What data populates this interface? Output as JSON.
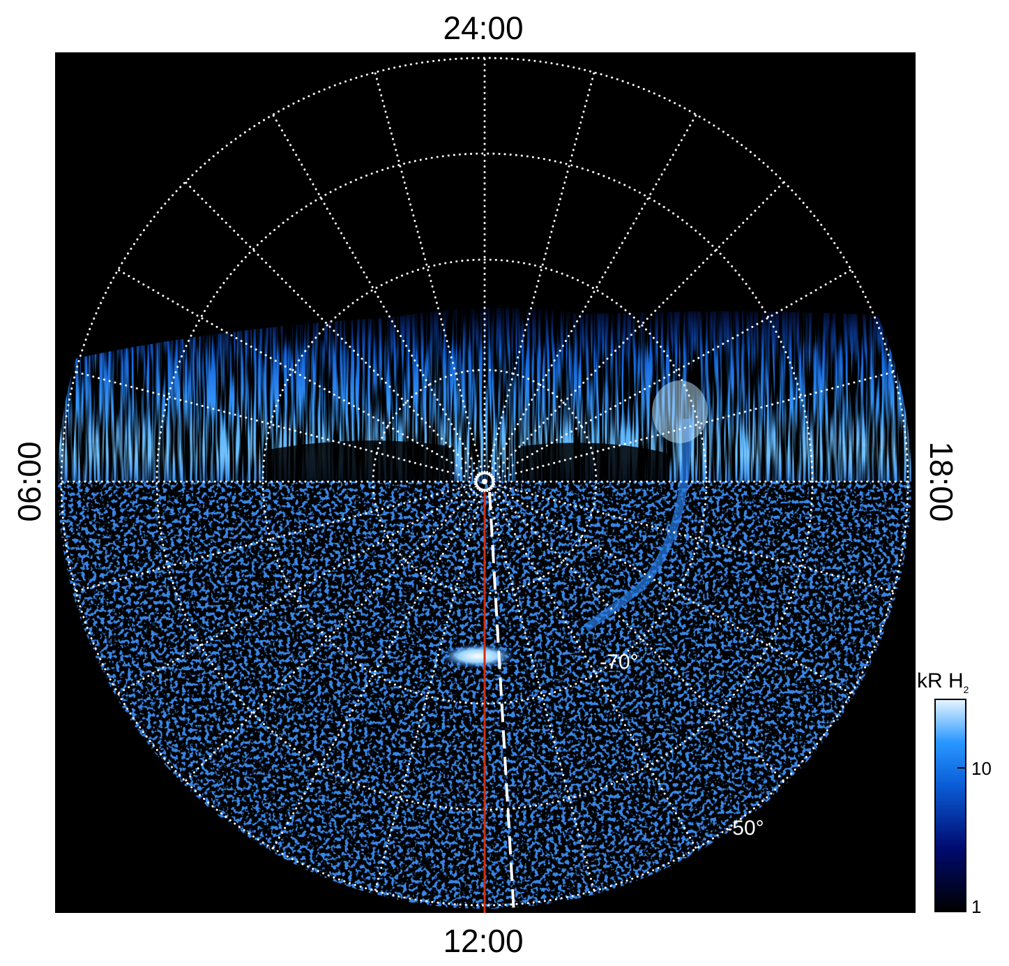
{
  "figure": {
    "time_labels": {
      "top": "24:00",
      "bottom": "12:00",
      "left": "06:00",
      "right": "18:00"
    },
    "latitude_labels": [
      "-70°",
      "-50°"
    ],
    "colorbar": {
      "label": "kR H",
      "label_subscript": "2",
      "lim": [
        1,
        30
      ],
      "ticks": [
        1,
        10
      ],
      "log": true
    }
  }
}
